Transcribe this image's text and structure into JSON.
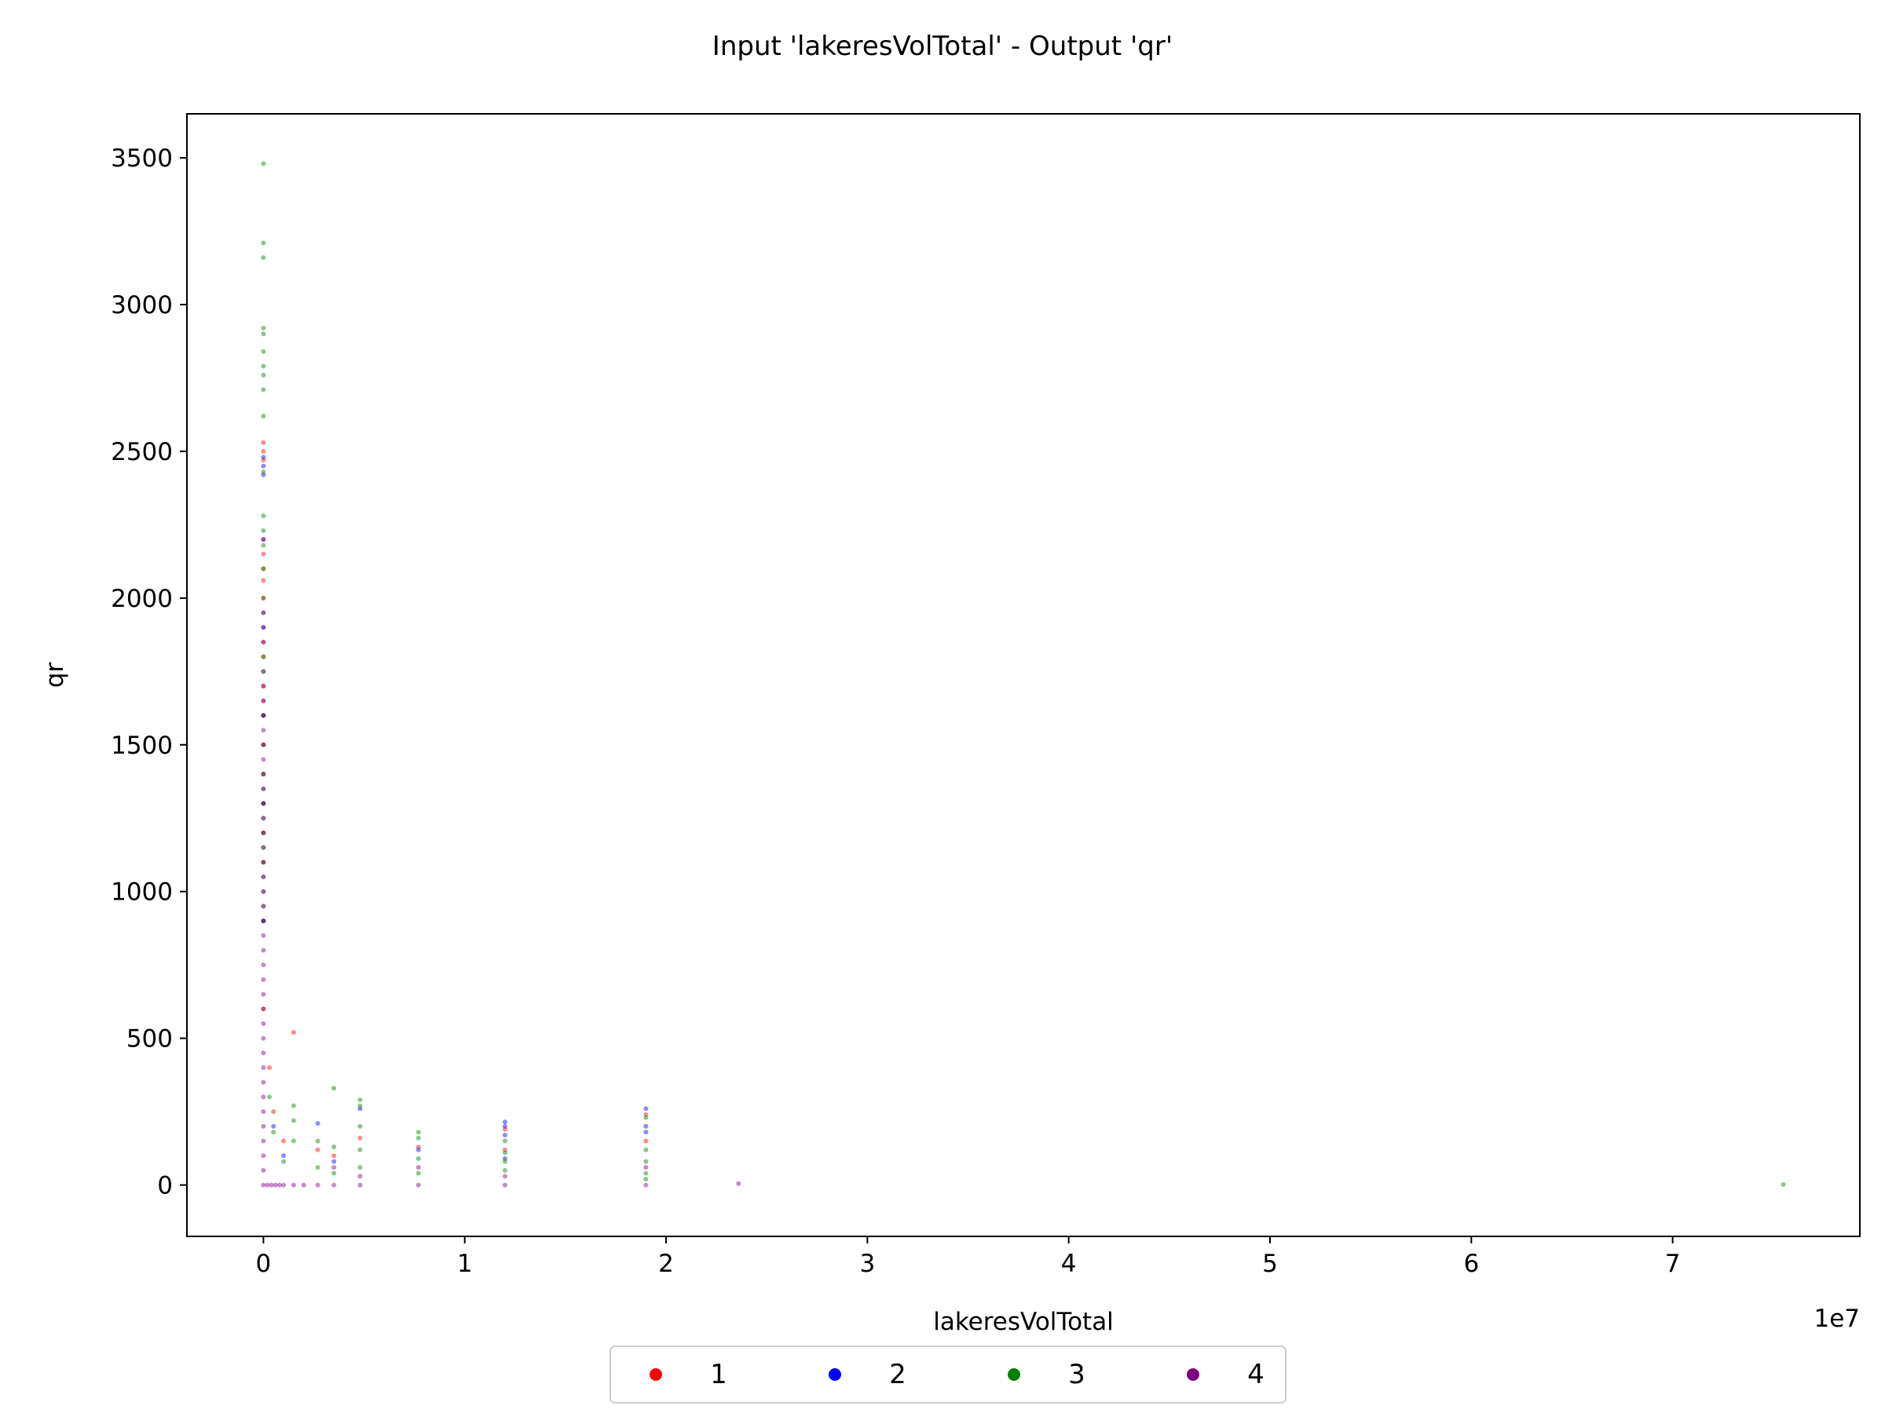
{
  "chart_data": {
    "type": "scatter",
    "title": "Input 'lakeresVolTotal' - Output 'qr'",
    "xlabel": "lakeresVolTotal",
    "ylabel": "qr",
    "x_offset_label": "1e7",
    "x_scale": 10000000,
    "xlim": [
      -0.38,
      7.93
    ],
    "ylim": [
      -175,
      3650
    ],
    "x_ticks": [
      0,
      1,
      2,
      3,
      4,
      5,
      6,
      7
    ],
    "y_ticks": [
      0,
      500,
      1000,
      1500,
      2000,
      2500,
      3000,
      3500
    ],
    "legend": {
      "placement": "bottom-center",
      "columns": 4
    },
    "series": [
      {
        "name": "1",
        "color": "#ff0000",
        "points": [
          [
            0,
            2530
          ],
          [
            0,
            2500
          ],
          [
            0,
            2470
          ],
          [
            0,
            2200
          ],
          [
            0,
            2150
          ],
          [
            0,
            2100
          ],
          [
            0,
            2060
          ],
          [
            0,
            2000
          ],
          [
            0,
            1850
          ],
          [
            0,
            1800
          ],
          [
            0,
            1700
          ],
          [
            0,
            1650
          ],
          [
            0,
            1600
          ],
          [
            0,
            1500
          ],
          [
            0,
            1400
          ],
          [
            0,
            1300
          ],
          [
            0,
            1200
          ],
          [
            0,
            1100
          ],
          [
            0,
            900
          ],
          [
            0,
            600
          ],
          [
            0.03,
            400
          ],
          [
            0.05,
            250
          ],
          [
            0.1,
            150
          ],
          [
            0.15,
            520
          ],
          [
            0.27,
            120
          ],
          [
            0.35,
            100
          ],
          [
            0.48,
            160
          ],
          [
            0.77,
            130
          ],
          [
            1.2,
            190
          ],
          [
            1.2,
            120
          ],
          [
            1.9,
            240
          ],
          [
            1.9,
            150
          ]
        ]
      },
      {
        "name": "2",
        "color": "#0000ff",
        "points": [
          [
            0,
            2480
          ],
          [
            0,
            2450
          ],
          [
            0,
            2420
          ],
          [
            0,
            2200
          ],
          [
            0,
            1900
          ],
          [
            0,
            1600
          ],
          [
            0,
            1300
          ],
          [
            0,
            900
          ],
          [
            0.05,
            200
          ],
          [
            0.1,
            100
          ],
          [
            0.27,
            210
          ],
          [
            0.35,
            80
          ],
          [
            0.48,
            260
          ],
          [
            0.77,
            120
          ],
          [
            1.2,
            215
          ],
          [
            1.2,
            200
          ],
          [
            1.2,
            170
          ],
          [
            1.2,
            90
          ],
          [
            1.9,
            260
          ],
          [
            1.9,
            200
          ],
          [
            1.9,
            180
          ]
        ]
      },
      {
        "name": "3",
        "color": "#008000",
        "points": [
          [
            0,
            3480
          ],
          [
            0,
            3210
          ],
          [
            0,
            3160
          ],
          [
            0,
            2920
          ],
          [
            0,
            2900
          ],
          [
            0,
            2840
          ],
          [
            0,
            2790
          ],
          [
            0,
            2760
          ],
          [
            0,
            2710
          ],
          [
            0,
            2620
          ],
          [
            0,
            2430
          ],
          [
            0,
            2280
          ],
          [
            0,
            2230
          ],
          [
            0,
            2180
          ],
          [
            0,
            2100
          ],
          [
            0,
            2000
          ],
          [
            0,
            1950
          ],
          [
            0,
            1800
          ],
          [
            0,
            1750
          ],
          [
            0,
            1600
          ],
          [
            0,
            1500
          ],
          [
            0,
            1400
          ],
          [
            0,
            1350
          ],
          [
            0,
            1300
          ],
          [
            0,
            1250
          ],
          [
            0,
            1200
          ],
          [
            0,
            1150
          ],
          [
            0,
            1100
          ],
          [
            0,
            1050
          ],
          [
            0,
            1000
          ],
          [
            0,
            950
          ],
          [
            0,
            900
          ],
          [
            0.03,
            300
          ],
          [
            0.05,
            180
          ],
          [
            0.1,
            80
          ],
          [
            0.15,
            270
          ],
          [
            0.15,
            220
          ],
          [
            0.15,
            150
          ],
          [
            0.27,
            150
          ],
          [
            0.27,
            60
          ],
          [
            0.35,
            330
          ],
          [
            0.35,
            130
          ],
          [
            0.35,
            40
          ],
          [
            0.48,
            290
          ],
          [
            0.48,
            270
          ],
          [
            0.48,
            200
          ],
          [
            0.48,
            120
          ],
          [
            0.48,
            60
          ],
          [
            0.77,
            180
          ],
          [
            0.77,
            160
          ],
          [
            0.77,
            90
          ],
          [
            0.77,
            40
          ],
          [
            1.2,
            150
          ],
          [
            1.2,
            110
          ],
          [
            1.2,
            80
          ],
          [
            1.2,
            50
          ],
          [
            1.9,
            230
          ],
          [
            1.9,
            120
          ],
          [
            1.9,
            80
          ],
          [
            1.9,
            40
          ],
          [
            1.9,
            20
          ],
          [
            7.55,
            2
          ]
        ]
      },
      {
        "name": "4",
        "color": "#800080",
        "points": [
          [
            0,
            1950
          ],
          [
            0,
            1900
          ],
          [
            0,
            1850
          ],
          [
            0,
            1750
          ],
          [
            0,
            1700
          ],
          [
            0,
            1650
          ],
          [
            0,
            1600
          ],
          [
            0,
            1550
          ],
          [
            0,
            1500
          ],
          [
            0,
            1450
          ],
          [
            0,
            1400
          ],
          [
            0,
            1350
          ],
          [
            0,
            1300
          ],
          [
            0,
            1250
          ],
          [
            0,
            1200
          ],
          [
            0,
            1150
          ],
          [
            0,
            1100
          ],
          [
            0,
            1050
          ],
          [
            0,
            1000
          ],
          [
            0,
            950
          ],
          [
            0,
            900
          ],
          [
            0,
            850
          ],
          [
            0,
            800
          ],
          [
            0,
            750
          ],
          [
            0,
            700
          ],
          [
            0,
            650
          ],
          [
            0,
            600
          ],
          [
            0,
            550
          ],
          [
            0,
            500
          ],
          [
            0,
            450
          ],
          [
            0,
            400
          ],
          [
            0,
            350
          ],
          [
            0,
            300
          ],
          [
            0,
            250
          ],
          [
            0,
            200
          ],
          [
            0,
            150
          ],
          [
            0,
            100
          ],
          [
            0,
            50
          ],
          [
            0,
            0
          ],
          [
            0.02,
            0
          ],
          [
            0.04,
            0
          ],
          [
            0.06,
            0
          ],
          [
            0.08,
            0
          ],
          [
            0.1,
            0
          ],
          [
            0.15,
            0
          ],
          [
            0.2,
            0
          ],
          [
            0.27,
            0
          ],
          [
            0.35,
            0
          ],
          [
            0.48,
            0
          ],
          [
            0.77,
            0
          ],
          [
            1.2,
            0
          ],
          [
            1.9,
            0
          ],
          [
            2.36,
            5
          ],
          [
            0.35,
            60
          ],
          [
            0.48,
            30
          ],
          [
            0.77,
            60
          ],
          [
            1.2,
            30
          ],
          [
            1.9,
            60
          ]
        ]
      }
    ]
  }
}
